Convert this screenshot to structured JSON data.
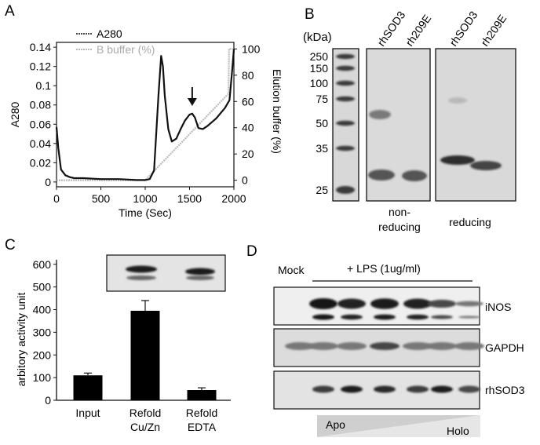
{
  "panels": {
    "A": {
      "letter": "A"
    },
    "B": {
      "letter": "B"
    },
    "C": {
      "letter": "C"
    },
    "D": {
      "letter": "D"
    }
  },
  "chart_data": [
    {
      "panel": "A",
      "type": "line",
      "xlabel": "Time (Sec)",
      "ylabel": "A280",
      "y2label": "Elution buffer (%)",
      "xlim": [
        0,
        2000
      ],
      "ylim": [
        -0.005,
        0.145
      ],
      "y2lim": [
        -5,
        105
      ],
      "xticks": [
        "0",
        "500",
        "1000",
        "1500",
        "2000"
      ],
      "yticks": [
        "0",
        "0.02",
        "0.04",
        "0.06",
        "0.08",
        "0.1",
        "0.12",
        "0.14"
      ],
      "y2ticks": [
        "0",
        "20",
        "40",
        "60",
        "80",
        "100"
      ],
      "legend_position": "top-left",
      "annotation": "arrow at elution peak near 1530 sec",
      "series": [
        {
          "name": "A280",
          "color": "#111111",
          "axis": "left",
          "x": [
            0,
            20,
            50,
            100,
            150,
            200,
            300,
            500,
            700,
            900,
            1000,
            1050,
            1100,
            1150,
            1180,
            1200,
            1220,
            1260,
            1300,
            1350,
            1400,
            1450,
            1500,
            1530,
            1560,
            1600,
            1650,
            1700,
            1800,
            1900,
            1950,
            1980,
            2000
          ],
          "values": [
            0.057,
            0.035,
            0.013,
            0.007,
            0.005,
            0.004,
            0.004,
            0.003,
            0.003,
            0.002,
            0.002,
            0.003,
            0.012,
            0.09,
            0.131,
            0.12,
            0.09,
            0.055,
            0.042,
            0.045,
            0.055,
            0.064,
            0.07,
            0.071,
            0.067,
            0.056,
            0.055,
            0.058,
            0.066,
            0.077,
            0.085,
            0.115,
            0.138
          ]
        },
        {
          "name": "B buffer (%)",
          "color": "#bbbbbb",
          "axis": "right",
          "x": [
            0,
            1000,
            1940,
            1945,
            2000
          ],
          "values": [
            0,
            0,
            66,
            100,
            100
          ]
        }
      ]
    },
    {
      "panel": "C",
      "type": "bar",
      "ylabel": "arbitory activity unit",
      "ylim": [
        0,
        620
      ],
      "yticks": [
        "0",
        "100",
        "200",
        "300",
        "400",
        "500",
        "600"
      ],
      "categories": [
        "Input",
        "Refold\nCu/Zn",
        "Refold\nEDTA"
      ],
      "values": [
        110,
        395,
        45
      ],
      "errors": [
        10,
        45,
        10
      ]
    }
  ],
  "gel_B": {
    "unit_label": "(kDa)",
    "markers": [
      "250",
      "150",
      "100",
      "75",
      "50",
      "35",
      "25"
    ],
    "lanes": [
      "rhSOD3",
      "rh209E",
      "rhSOD3",
      "rh209E"
    ],
    "group_labels": {
      "nonreducing_line1": "non-",
      "nonreducing_line2": "reducing",
      "reducing": "reducing"
    }
  },
  "panel_C_inset": {
    "description_bands": 2
  },
  "blot_D": {
    "mock_label": "Mock",
    "treatment_label": "+ LPS (1ug/ml)",
    "rows": [
      "iNOS",
      "GAPDH",
      "rhSOD3"
    ],
    "gradient_left": "Apo",
    "gradient_right": "Holo"
  }
}
